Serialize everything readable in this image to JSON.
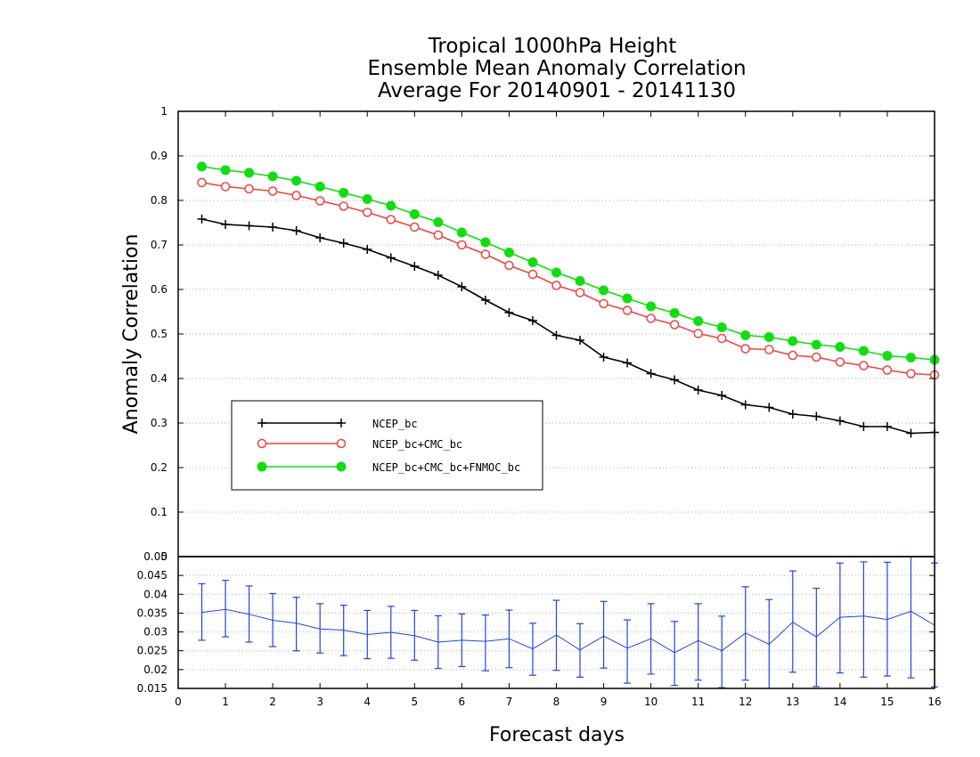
{
  "chart_data": {
    "type": "line",
    "title": [
      "Tropical 1000hPa Height",
      "Ensemble Mean Anomaly Correlation",
      "Average For 20140901 - 20141130"
    ],
    "xlabel": "Forecast days",
    "ylabel": "Anomaly Correlation",
    "xlim": [
      0,
      16
    ],
    "x_ticks": [
      "0",
      "1",
      "2",
      "3",
      "4",
      "5",
      "6",
      "7",
      "8",
      "9",
      "10",
      "11",
      "12",
      "13",
      "14",
      "15",
      "16"
    ],
    "grid": true,
    "legend_placement": "lower-left",
    "top_panel": {
      "ylim": [
        0,
        1
      ],
      "y_ticks": [
        "0",
        "0.1",
        "0.2",
        "0.3",
        "0.4",
        "0.5",
        "0.6",
        "0.7",
        "0.8",
        "0.9",
        "1"
      ],
      "x": [
        0.5,
        1,
        1.5,
        2,
        2.5,
        3,
        3.5,
        4,
        4.5,
        5,
        5.5,
        6,
        6.5,
        7,
        7.5,
        8,
        8.5,
        9,
        9.5,
        10,
        10.5,
        11,
        11.5,
        12,
        12.5,
        13,
        13.5,
        14,
        14.5,
        15,
        15.5,
        16
      ],
      "series": [
        {
          "name": "NCEP_bc",
          "marker": "plus",
          "color": "#000000",
          "values": [
            0.758,
            0.746,
            0.743,
            0.74,
            0.732,
            0.716,
            0.704,
            0.69,
            0.671,
            0.652,
            0.632,
            0.606,
            0.576,
            0.548,
            0.53,
            0.497,
            0.486,
            0.448,
            0.435,
            0.411,
            0.397,
            0.374,
            0.362,
            0.341,
            0.335,
            0.32,
            0.315,
            0.305,
            0.292,
            0.292,
            0.277,
            0.279
          ]
        },
        {
          "name": "NCEP_bc+CMC_bc",
          "marker": "open-circle",
          "color": "#ee4444",
          "values": [
            0.84,
            0.831,
            0.826,
            0.821,
            0.811,
            0.799,
            0.787,
            0.773,
            0.757,
            0.74,
            0.722,
            0.7,
            0.679,
            0.654,
            0.634,
            0.609,
            0.593,
            0.568,
            0.553,
            0.535,
            0.521,
            0.501,
            0.49,
            0.467,
            0.465,
            0.452,
            0.448,
            0.437,
            0.429,
            0.419,
            0.411,
            0.408
          ]
        },
        {
          "name": "NCEP_bc+CMC_bc+FNMOC_bc",
          "marker": "filled-circle",
          "color": "#11dd11",
          "values": [
            0.876,
            0.868,
            0.862,
            0.854,
            0.844,
            0.831,
            0.817,
            0.803,
            0.788,
            0.769,
            0.751,
            0.728,
            0.706,
            0.683,
            0.661,
            0.638,
            0.619,
            0.598,
            0.58,
            0.562,
            0.547,
            0.529,
            0.515,
            0.497,
            0.493,
            0.484,
            0.476,
            0.471,
            0.462,
            0.451,
            0.447,
            0.442
          ]
        }
      ]
    },
    "bottom_panel": {
      "ylim": [
        0.015,
        0.05
      ],
      "y_ticks": [
        "0.015",
        "0.02",
        "0.025",
        "0.03",
        "0.035",
        "0.04",
        "0.045",
        "0.05"
      ],
      "color": "#2244dd",
      "x": [
        0.5,
        1,
        1.5,
        2,
        2.5,
        3,
        3.5,
        4,
        4.5,
        5,
        5.5,
        6,
        6.5,
        7,
        7.5,
        8,
        8.5,
        9,
        9.5,
        10,
        10.5,
        11,
        11.5,
        12,
        12.5,
        13,
        13.5,
        14,
        14.5,
        15,
        15.5,
        16
      ],
      "values": [
        0.0352,
        0.036,
        0.0347,
        0.0331,
        0.0323,
        0.0308,
        0.0305,
        0.0293,
        0.0299,
        0.029,
        0.0273,
        0.0278,
        0.0275,
        0.0282,
        0.0255,
        0.0292,
        0.0252,
        0.0289,
        0.0257,
        0.0282,
        0.0245,
        0.0277,
        0.025,
        0.0297,
        0.0267,
        0.0326,
        0.0287,
        0.0339,
        0.0342,
        0.0333,
        0.0355,
        0.0318
      ],
      "err_low": [
        0.0278,
        0.0287,
        0.0273,
        0.0261,
        0.025,
        0.0244,
        0.0237,
        0.0229,
        0.023,
        0.0225,
        0.0203,
        0.0208,
        0.0197,
        0.0205,
        0.0185,
        0.0198,
        0.018,
        0.0204,
        0.0164,
        0.0188,
        0.0158,
        0.0172,
        0.0152,
        0.0172,
        0.0147,
        0.0193,
        0.0155,
        0.0191,
        0.018,
        0.0183,
        0.0178,
        0.0154
      ],
      "err_high": [
        0.0428,
        0.0437,
        0.0422,
        0.0402,
        0.0392,
        0.0375,
        0.0371,
        0.0357,
        0.0368,
        0.0357,
        0.0343,
        0.0348,
        0.0345,
        0.0358,
        0.0323,
        0.0384,
        0.0322,
        0.0381,
        0.0332,
        0.0375,
        0.0328,
        0.0375,
        0.0342,
        0.042,
        0.0386,
        0.0462,
        0.0416,
        0.0483,
        0.0486,
        0.0485,
        0.0503,
        0.0483
      ]
    }
  }
}
